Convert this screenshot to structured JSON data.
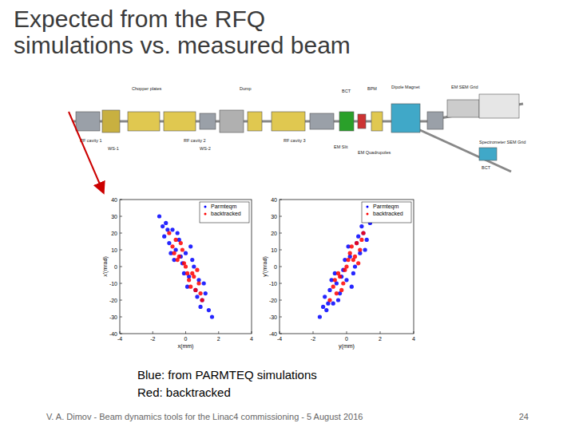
{
  "slide": {
    "title": [
      "Expected from the RFQ",
      "simulations vs. measured beam"
    ],
    "caption": [
      "Blue: from PARMTEQ simulations",
      "Red: backtracked"
    ],
    "footer": "V. A. Dimov - Beam dynamics tools for the Linac4 commissioning - 5 August 2016",
    "page": 24,
    "beamline_labels": [
      "Chopper plates",
      "Dump",
      "RF cavity 1",
      "WS-1",
      "RF cavity 2",
      "WS-2",
      "RF cavity 3",
      "BCT",
      "BPM",
      "EM Slit",
      "EM Quadrupoles",
      "Dipole Magnet",
      "EM SEM Grid",
      "Spectrometer SEM Grid",
      "BCT"
    ]
  },
  "chart_data": [
    {
      "type": "scatter",
      "xlabel": "x(mm)",
      "ylabel": "x'(mrad)",
      "xlim": [
        -4,
        4
      ],
      "xticks": [
        -4,
        -2,
        0,
        2,
        4
      ],
      "ylim": [
        -40,
        40
      ],
      "yticks": [
        -40,
        -30,
        -20,
        -10,
        0,
        10,
        20,
        30,
        40
      ],
      "legend": "northeast",
      "grid": false,
      "series": [
        {
          "name": "Parmteqm",
          "color": "#0000ff",
          "marker": "dot",
          "x": [
            -1.6,
            -1.4,
            -1.2,
            -1.0,
            -0.8,
            -0.6,
            -0.4,
            -0.2,
            0.0,
            0.2,
            0.4,
            0.6,
            0.8,
            1.0,
            1.2,
            1.4,
            1.6,
            -1.3,
            -0.9,
            -0.5,
            -0.1,
            0.3,
            0.7,
            1.1,
            -0.7,
            0.1,
            0.5,
            -0.3,
            0.9,
            -1.1
          ],
          "values": [
            30,
            24,
            26,
            14,
            22,
            10,
            16,
            2,
            8,
            -6,
            4,
            -14,
            -8,
            -20,
            -16,
            -26,
            -30,
            18,
            8,
            20,
            -4,
            12,
            -18,
            -10,
            4,
            -12,
            0,
            6,
            -24,
            22
          ]
        },
        {
          "name": "backtracked",
          "color": "#ff0000",
          "marker": "dot",
          "x": [
            -1.0,
            -0.8,
            -0.6,
            -0.4,
            -0.2,
            0.0,
            0.2,
            0.4,
            0.6,
            0.8,
            1.0,
            -0.7,
            -0.3,
            0.1,
            0.5,
            0.9,
            -0.5,
            0.3,
            -0.1,
            0.7
          ],
          "values": [
            20,
            12,
            16,
            6,
            10,
            0,
            -8,
            -4,
            -14,
            -10,
            -20,
            8,
            14,
            -4,
            -6,
            -16,
            4,
            -12,
            2,
            -2
          ]
        }
      ]
    },
    {
      "type": "scatter",
      "xlabel": "y(mm)",
      "ylabel": "y'(mrad)",
      "xlim": [
        -4,
        4
      ],
      "xticks": [
        -4,
        -2,
        0,
        2,
        4
      ],
      "ylim": [
        -40,
        40
      ],
      "yticks": [
        -40,
        -30,
        -20,
        -10,
        0,
        10,
        20,
        30,
        40
      ],
      "legend": "northeast",
      "grid": false,
      "series": [
        {
          "name": "Parmteqm",
          "color": "#0000ff",
          "marker": "dot",
          "x": [
            -1.6,
            -1.4,
            -1.2,
            -1.0,
            -0.8,
            -0.6,
            -0.4,
            -0.2,
            0.0,
            0.2,
            0.4,
            0.6,
            0.8,
            1.0,
            1.2,
            1.4,
            1.6,
            -1.3,
            -0.9,
            -0.5,
            -0.1,
            0.3,
            0.7,
            1.1,
            -0.7,
            0.1,
            0.5,
            -0.3,
            0.9,
            -1.1
          ],
          "values": [
            -30,
            -24,
            -26,
            -14,
            -22,
            -10,
            -16,
            -2,
            -8,
            6,
            -4,
            14,
            8,
            20,
            16,
            26,
            30,
            -18,
            -8,
            -20,
            4,
            -12,
            18,
            10,
            -4,
            12,
            0,
            -6,
            24,
            -22
          ]
        },
        {
          "name": "backtracked",
          "color": "#ff0000",
          "marker": "dot",
          "x": [
            -1.0,
            -0.8,
            -0.6,
            -0.4,
            -0.2,
            0.0,
            0.2,
            0.4,
            0.6,
            0.8,
            1.0,
            -0.7,
            -0.3,
            0.1,
            0.5,
            0.9,
            -0.5,
            0.3,
            -0.1,
            0.7
          ],
          "values": [
            -20,
            -12,
            -16,
            -6,
            -10,
            0,
            8,
            4,
            14,
            10,
            20,
            -8,
            -14,
            4,
            6,
            16,
            -4,
            12,
            -2,
            2
          ]
        }
      ]
    }
  ]
}
